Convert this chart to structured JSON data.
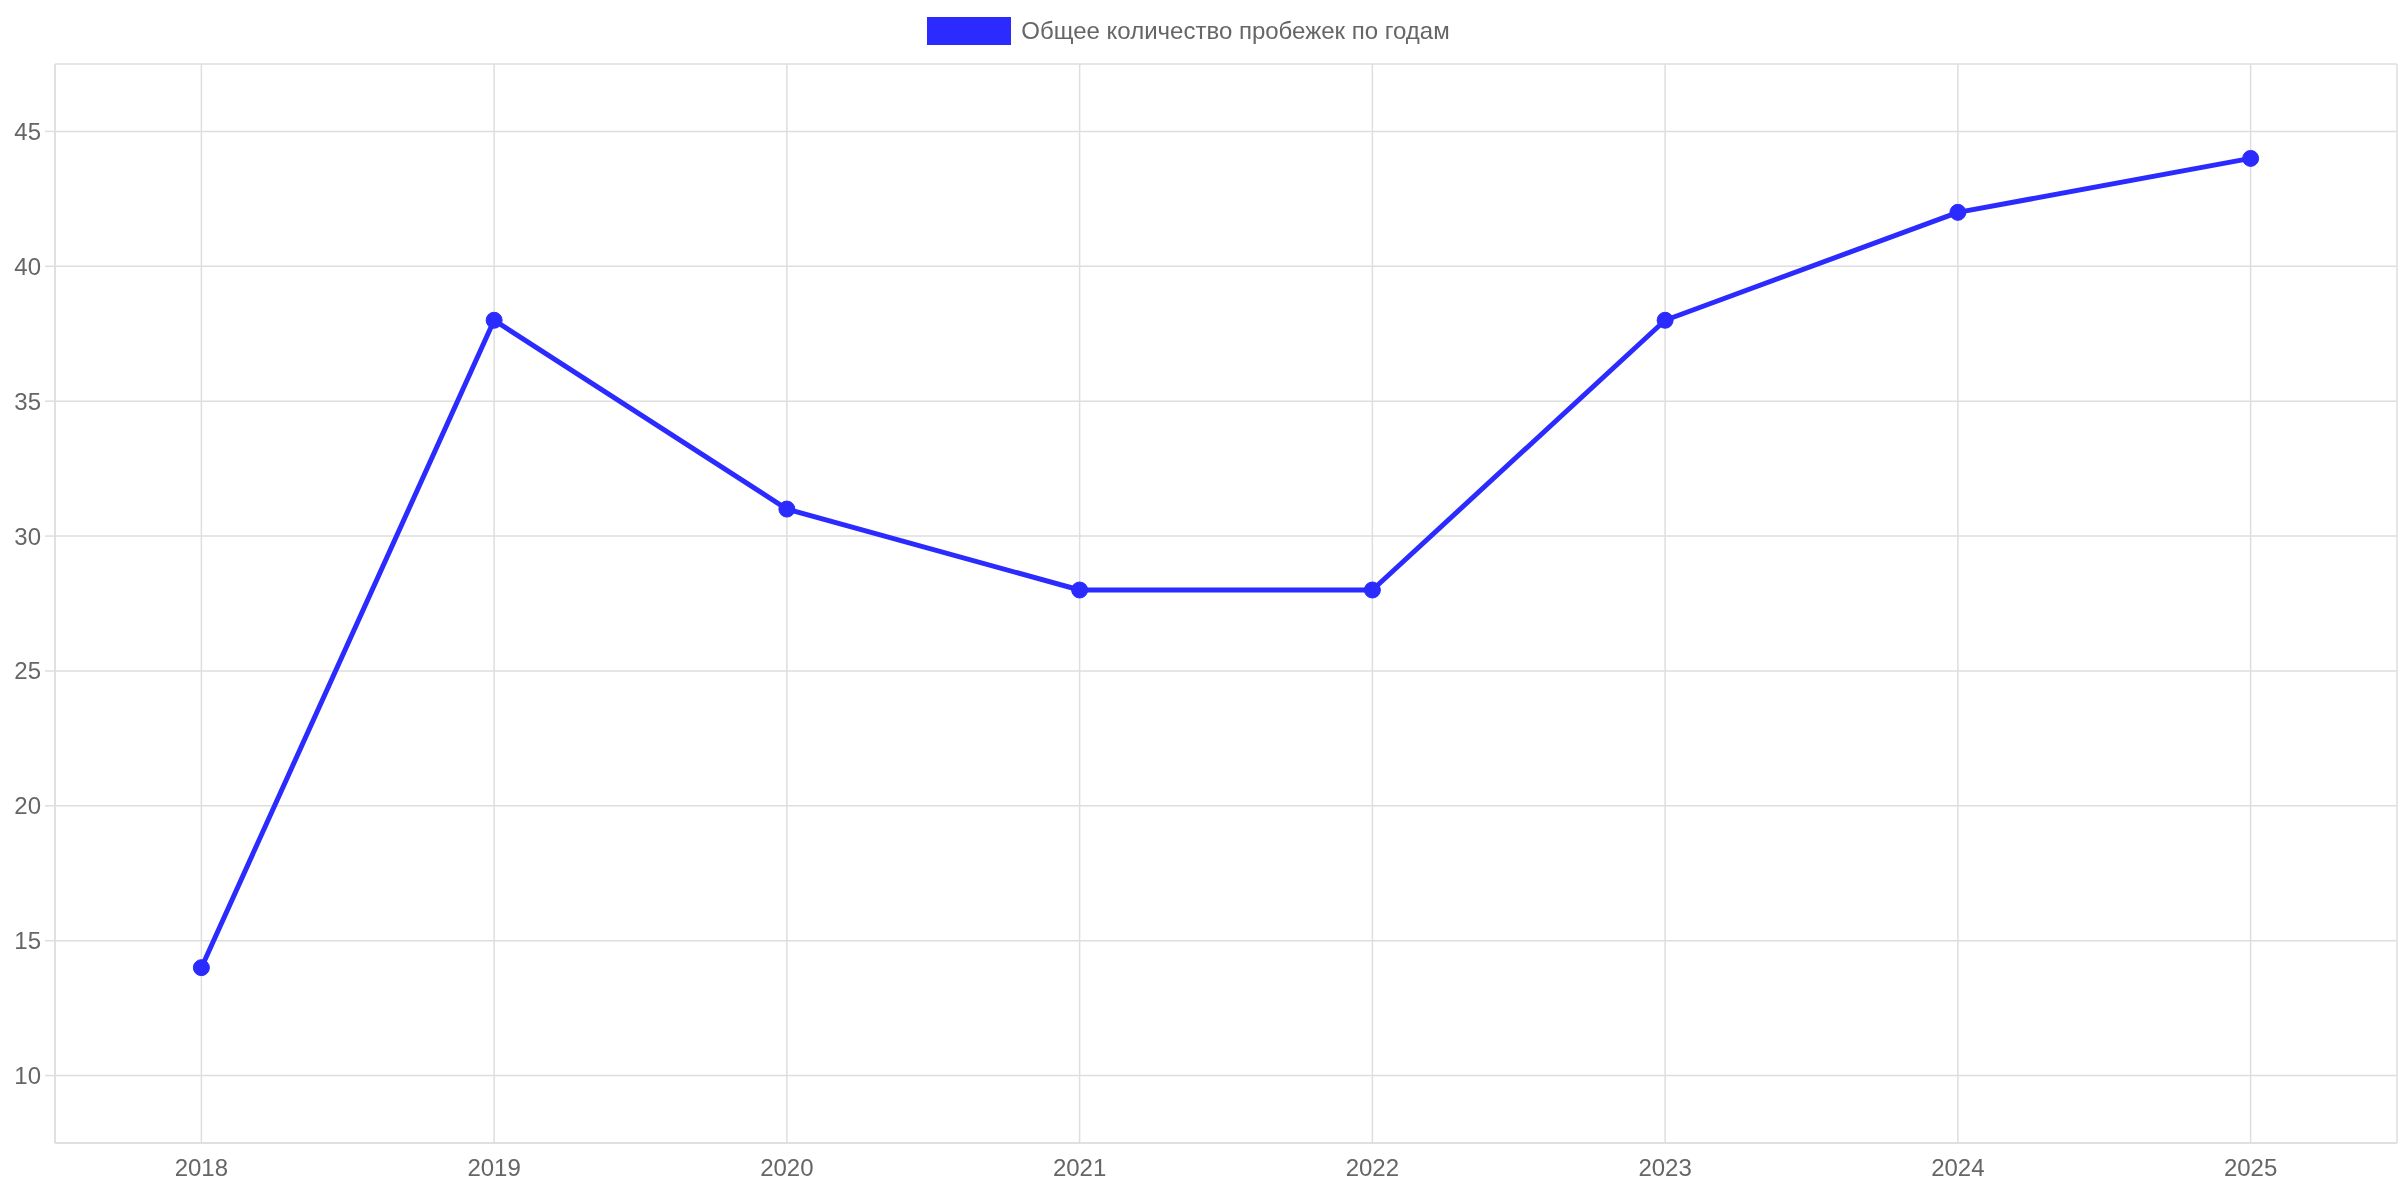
{
  "chart_data": {
    "type": "line",
    "categories": [
      "2018",
      "2019",
      "2020",
      "2021",
      "2022",
      "2023",
      "2024",
      "2025"
    ],
    "series": [
      {
        "name": "Общее количество пробежек по годам",
        "color": "#2b2bff",
        "values": [
          14,
          38,
          31,
          28,
          28,
          38,
          42,
          44
        ]
      }
    ],
    "ylim": [
      7.5,
      47.5
    ],
    "yticks": [
      10,
      15,
      20,
      25,
      30,
      35,
      40,
      45
    ],
    "grid": true,
    "legend": "top",
    "marker": "circle",
    "line_style": "solid"
  }
}
